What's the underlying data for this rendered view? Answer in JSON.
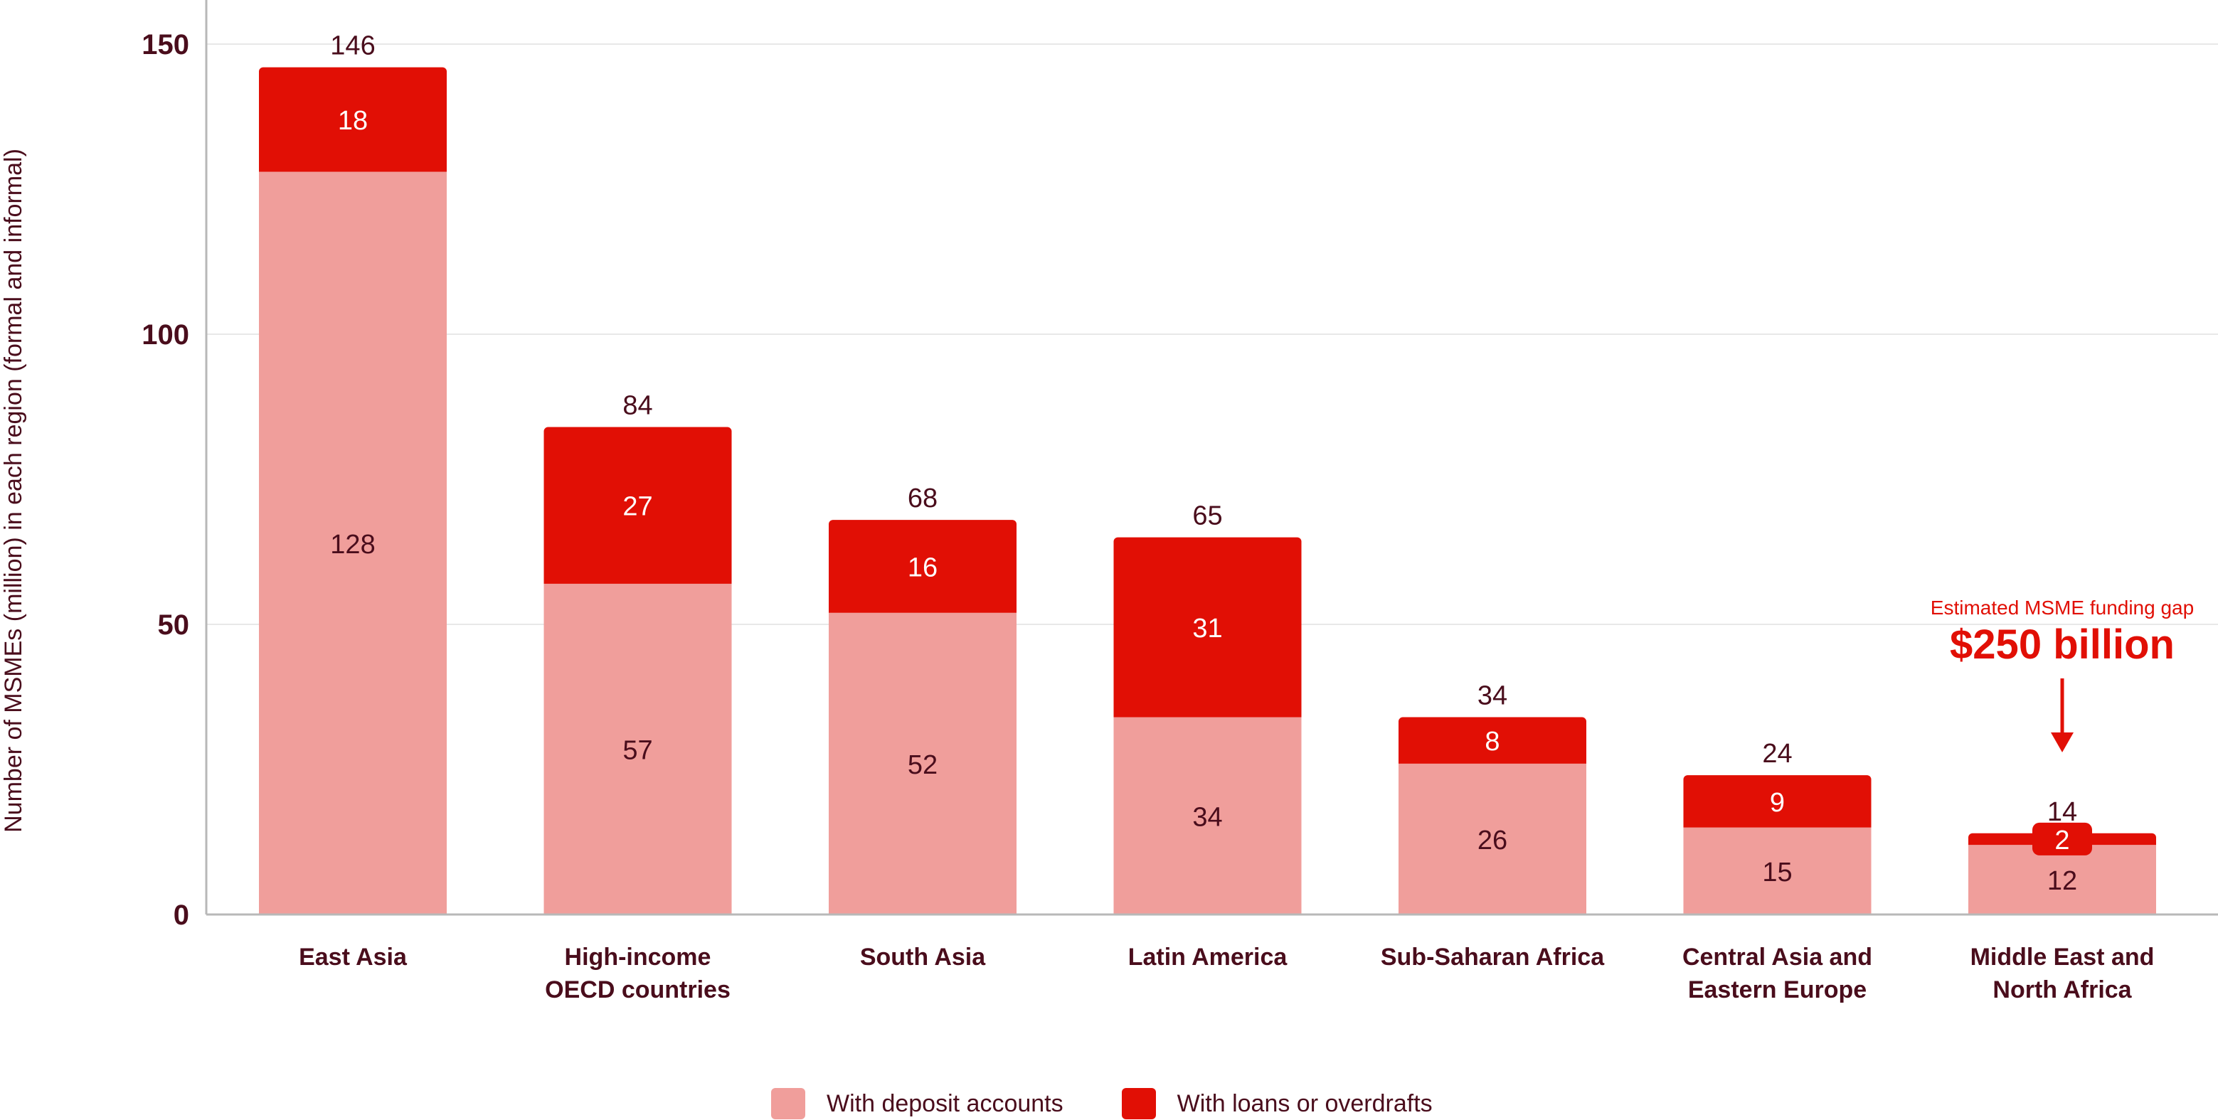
{
  "chart_data": {
    "type": "bar",
    "stacked": true,
    "title": "",
    "ylabel": "Number of MSMEs (million) in each region (formal and informal)",
    "xlabel": "",
    "ylim": [
      0,
      150
    ],
    "yticks": [
      0,
      50,
      100,
      150
    ],
    "grid": true,
    "categories": [
      [
        "East Asia"
      ],
      [
        "High-income",
        "OECD countries"
      ],
      [
        "South Asia"
      ],
      [
        "Latin America"
      ],
      [
        "Sub-Saharan Africa"
      ],
      [
        "Central Asia and",
        "Eastern Europe"
      ],
      [
        "Middle East and",
        "North Africa"
      ]
    ],
    "series": [
      {
        "name": "With deposit accounts",
        "color": "#f09e9b",
        "values": [
          128,
          57,
          52,
          34,
          26,
          15,
          12
        ]
      },
      {
        "name": "With loans or overdrafts",
        "color": "#e10f05",
        "values": [
          18,
          27,
          16,
          31,
          8,
          9,
          2
        ]
      }
    ],
    "totals": [
      146,
      84,
      68,
      65,
      34,
      24,
      14
    ],
    "legend_position": "bottom-center",
    "annotation": {
      "category_index": 6,
      "label": "Estimated MSME funding gap",
      "value": "$250 billion",
      "color": "#e10f05"
    }
  }
}
